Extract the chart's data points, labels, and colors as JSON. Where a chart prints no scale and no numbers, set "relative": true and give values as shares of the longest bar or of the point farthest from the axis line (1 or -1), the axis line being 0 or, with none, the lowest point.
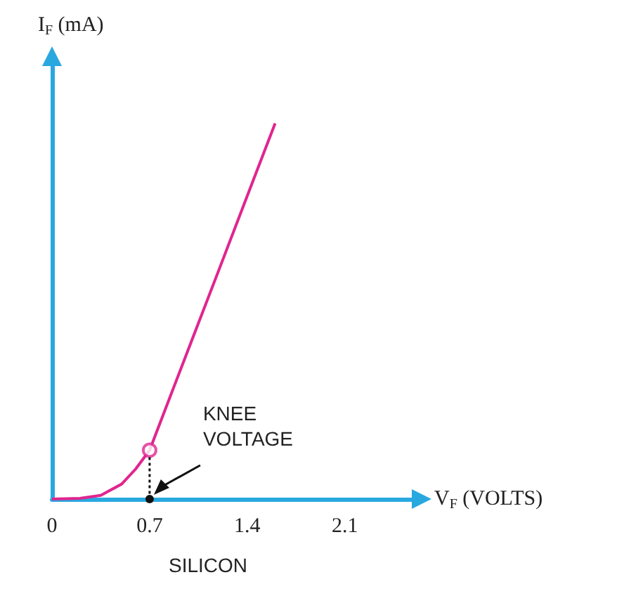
{
  "chart_data": {
    "type": "line",
    "relative": true,
    "xlabel": "V$_{F}$ (VOLTS)",
    "ylabel": "I$_{F}$ (mA)",
    "x": [
      0,
      0.2,
      0.35,
      0.5,
      0.6,
      0.7,
      0.8,
      1.0,
      1.2,
      1.4,
      1.6
    ],
    "series": [
      {
        "color": "#e0258f",
        "values": [
          0,
          0.002,
          0.01,
          0.04,
          0.08,
          0.13,
          0.227,
          0.42,
          0.613,
          0.807,
          1.0
        ]
      },
      {
        "type": "scatter",
        "color": "#e0258f",
        "marker": "circle",
        "x": [
          0.7
        ],
        "values": [
          0.13
        ]
      }
    ],
    "xlim": [
      0,
      2.6
    ],
    "xticks": [
      0,
      0.7,
      1.4,
      2.1
    ],
    "grid": false,
    "marker": "none",
    "annotations": [
      "KNEE VOLTAGE",
      "SILICON"
    ]
  }
}
